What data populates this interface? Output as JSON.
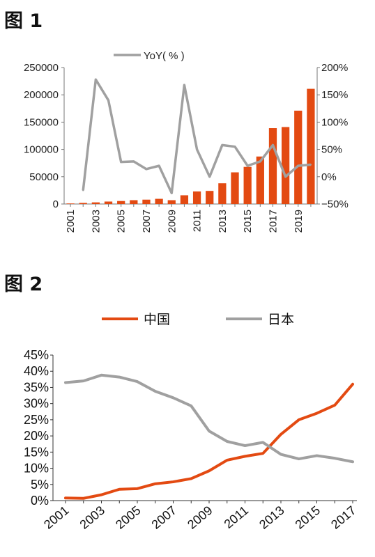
{
  "figures": [
    {
      "title": "图 1"
    },
    {
      "title": "图 2"
    }
  ],
  "colors": {
    "orange": "#E34A12",
    "gray": "#A0A0A0",
    "axis": "#777777"
  },
  "chart_data": [
    {
      "type": "bar+line",
      "title": "",
      "x": [
        "2001",
        "2002",
        "2003",
        "2004",
        "2005",
        "2006",
        "2007",
        "2008",
        "2009",
        "2010",
        "2011",
        "2012",
        "2013",
        "2014",
        "2015",
        "2016",
        "2017",
        "2018",
        "2019",
        "2020"
      ],
      "x_tick_labels": [
        "2001",
        "2003",
        "2005",
        "2007",
        "2009",
        "2011",
        "2013",
        "2015",
        "2017",
        "2019"
      ],
      "series": [
        {
          "kind": "bar",
          "axis": "left",
          "values": [
            1000,
            2000,
            3000,
            4500,
            5500,
            7000,
            8000,
            9500,
            7000,
            16000,
            23000,
            24000,
            38000,
            58000,
            68000,
            87000,
            139000,
            141000,
            171000,
            211000
          ]
        },
        {
          "kind": "line",
          "axis": "right",
          "name": "YoY( % )",
          "values": [
            null,
            -25,
            178,
            140,
            27,
            28,
            14,
            20,
            -30,
            168,
            50,
            0,
            58,
            55,
            20,
            28,
            58,
            0,
            20,
            22
          ]
        }
      ],
      "y_left": {
        "lim": [
          0,
          250000
        ],
        "ticks": [
          "0",
          "50000",
          "100000",
          "150000",
          "200000",
          "250000"
        ]
      },
      "y_right": {
        "lim": [
          -50,
          200
        ],
        "ticks": [
          "−50%",
          "0%",
          "50%",
          "100%",
          "150%",
          "200%"
        ]
      },
      "legend": {
        "placement": "top-center",
        "entries": [
          "YoY( % )"
        ]
      },
      "grid": false
    },
    {
      "type": "line",
      "title": "",
      "x": [
        "2001",
        "2002",
        "2003",
        "2004",
        "2005",
        "2006",
        "2007",
        "2008",
        "2009",
        "2010",
        "2011",
        "2012",
        "2013",
        "2014",
        "2015",
        "2016",
        "2017"
      ],
      "x_tick_labels": [
        "2001",
        "2003",
        "2005",
        "2007",
        "2009",
        "2011",
        "2013",
        "2015",
        "2017"
      ],
      "series": [
        {
          "name": "中国",
          "values": [
            0.8,
            0.7,
            1.8,
            3.5,
            3.7,
            5.2,
            5.8,
            6.8,
            9.2,
            12.5,
            13.7,
            14.6,
            20.5,
            25.0,
            27.0,
            29.5,
            36.0
          ]
        },
        {
          "name": "日本",
          "values": [
            36.5,
            37.0,
            38.8,
            38.2,
            36.8,
            33.8,
            31.8,
            29.3,
            21.5,
            18.3,
            17.0,
            18.0,
            14.3,
            12.9,
            13.9,
            13.1,
            12.0
          ]
        }
      ],
      "y": {
        "lim": [
          0,
          45
        ],
        "ticks": [
          "0%",
          "5%",
          "10%",
          "15%",
          "20%",
          "25%",
          "30%",
          "35%",
          "40%",
          "45%"
        ]
      },
      "legend": {
        "placement": "top-center",
        "entries": [
          "中国",
          "日本"
        ]
      },
      "grid": false
    }
  ]
}
